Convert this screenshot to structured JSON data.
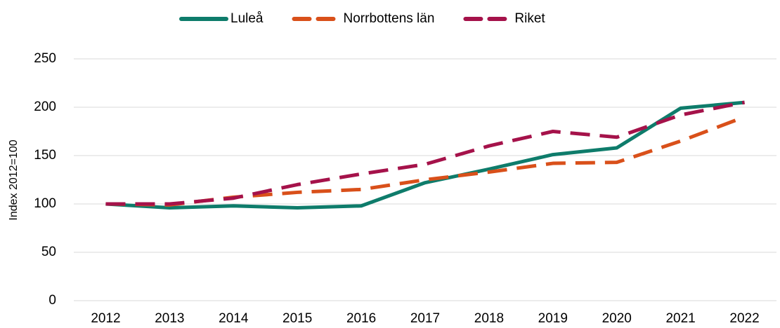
{
  "chart_data": {
    "type": "line",
    "y_label": "Index 2012=100",
    "categories": [
      "2012",
      "2013",
      "2014",
      "2015",
      "2016",
      "2017",
      "2018",
      "2019",
      "2020",
      "2021",
      "2022"
    ],
    "series": [
      {
        "name": "Luleå",
        "color": "#0e7c6b",
        "dashed": false,
        "values": [
          100,
          96,
          98,
          96,
          98,
          122,
          136,
          151,
          158,
          199,
          205
        ]
      },
      {
        "name": "Norrbottens län",
        "color": "#d9501a",
        "dashed": true,
        "values": [
          100,
          99,
          107,
          112,
          115,
          125,
          133,
          142,
          143,
          165,
          190
        ]
      },
      {
        "name": "Riket",
        "color": "#a5124a",
        "dashed": true,
        "values": [
          100,
          100,
          106,
          120,
          131,
          141,
          160,
          175,
          169,
          192,
          205
        ]
      }
    ],
    "ylim": [
      0,
      250
    ],
    "yticks": [
      0,
      50,
      100,
      150,
      200,
      250
    ],
    "grid": true,
    "legend": "top"
  }
}
